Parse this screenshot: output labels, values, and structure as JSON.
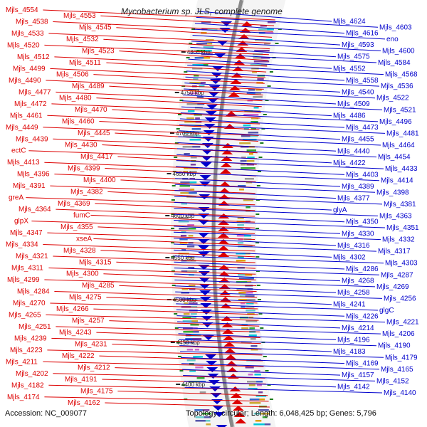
{
  "title": "Mycobacterium sp. JLS, complete genome",
  "footer": {
    "accession": "Accession: NC_009077",
    "stats": "Topology: circular; Length: 6,048,425 bp; Genes: 5,796"
  },
  "colors": {
    "left_strand": "#dd0000",
    "right_strand": "#0000cc",
    "backbone": "#888888",
    "tick": "#1a7a1a"
  },
  "kbp_ticks": [
    "4800 kbp",
    "4750 kbp",
    "4700 kbp",
    "4650 kbp",
    "4600 kbp",
    "4550 kbp",
    "4500 kbp",
    "4450 kbp",
    "4400 kbp"
  ],
  "left_labels": [
    "Mjls_4554",
    "Mjls_4553",
    "Mjls_4538",
    "Mjls_4545",
    "Mjls_4533",
    "Mjls_4532",
    "Mjls_4520",
    "Mjls_4523",
    "Mjls_4512",
    "Mjls_4511",
    "Mjls_4499",
    "Mjls_4506",
    "Mjls_4490",
    "Mjls_4489",
    "Mjls_4477",
    "Mjls_4480",
    "Mjls_4472",
    "Mjls_4470",
    "Mjls_4461",
    "Mjls_4460",
    "Mjls_4449",
    "Mjls_4445",
    "Mjls_4439",
    "Mjls_4430",
    "ectC",
    "Mjls_4417",
    "Mjls_4413",
    "Mjls_4399",
    "Mjls_4396",
    "Mjls_4400",
    "Mjls_4391",
    "Mjls_4382",
    "greA",
    "Mjls_4369",
    "Mjls_4364",
    "fumC",
    "glpX",
    "Mjls_4355",
    "Mjls_4347",
    "xseA",
    "Mjls_4334",
    "Mjls_4328",
    "Mjls_4321",
    "Mjls_4315",
    "Mjls_4311",
    "Mjls_4300",
    "Mjls_4299",
    "Mjls_4285",
    "Mjls_4284",
    "Mjls_4275",
    "Mjls_4270",
    "Mjls_4266",
    "Mjls_4265",
    "Mjls_4257",
    "Mjls_4251",
    "Mjls_4243",
    "Mjls_4239",
    "Mjls_4231",
    "Mjls_4223",
    "Mjls_4222",
    "Mjls_4211",
    "Mjls_4212",
    "Mjls_4202",
    "Mjls_4191",
    "Mjls_4182",
    "Mjls_4175",
    "Mjls_4174",
    "Mjls_4162"
  ],
  "right_labels": [
    "Mjls_4624",
    "Mjls_4603",
    "Mjls_4616",
    "eno",
    "Mjls_4593",
    "Mjls_4600",
    "Mjls_4575",
    "Mjls_4584",
    "Mjls_4552",
    "Mjls_4568",
    "Mjls_4558",
    "Mjls_4536",
    "Mjls_4540",
    "Mjls_4522",
    "Mjls_4509",
    "Mjls_4521",
    "Mjls_4486",
    "Mjls_4496",
    "Mjls_4473",
    "Mjls_4481",
    "Mjls_4455",
    "Mjls_4464",
    "Mjls_4440",
    "Mjls_4454",
    "Mjls_4422",
    "Mjls_4433",
    "Mjls_4403",
    "Mjls_4414",
    "Mjls_4389",
    "Mjls_4398",
    "Mjls_4377",
    "Mjls_4381",
    "glyA",
    "Mjls_4363",
    "Mjls_4350",
    "Mjls_4351",
    "Mjls_4330",
    "Mjls_4332",
    "Mjls_4316",
    "Mjls_4317",
    "Mjls_4302",
    "Mjls_4303",
    "Mjls_4286",
    "Mjls_4287",
    "Mjls_4268",
    "Mjls_4269",
    "Mjls_4258",
    "Mjls_4256",
    "Mjls_4241",
    "glgC",
    "Mjls_4226",
    "Mjls_4221",
    "Mjls_4214",
    "Mjls_4206",
    "Mjls_4196",
    "Mjls_4190",
    "Mjls_4183",
    "Mjls_4179",
    "Mjls_4169",
    "Mjls_4165",
    "Mjls_4157",
    "Mjls_4152",
    "Mjls_4142",
    "Mjls_4140"
  ]
}
